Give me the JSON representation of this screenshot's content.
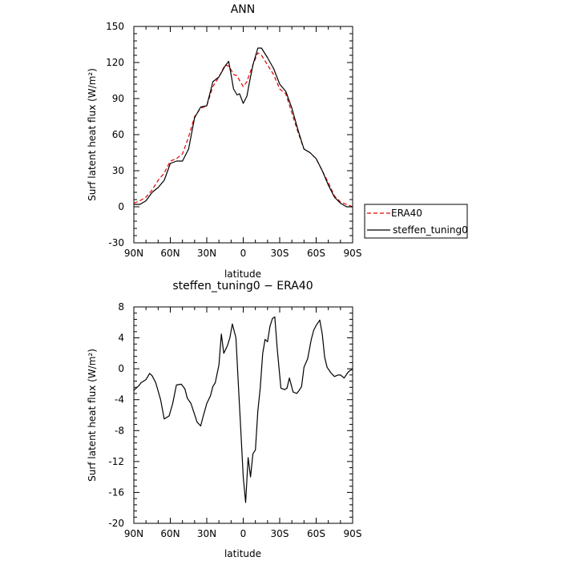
{
  "chart_data": [
    {
      "type": "line",
      "title": "ANN",
      "xlabel": "latitude",
      "ylabel": "Surf latent heat flux (W/m²)",
      "xlim": [
        -90,
        90
      ],
      "ylim": [
        -30,
        150
      ],
      "x_ticks": [
        "90N",
        "60N",
        "30N",
        "0",
        "30S",
        "60S",
        "90S"
      ],
      "y_ticks": [
        "-30",
        "0",
        "30",
        "60",
        "90",
        "120",
        "150"
      ],
      "legend": {
        "placement": "right-outside"
      },
      "series": [
        {
          "name": "ERA40",
          "color": "#e00000",
          "dash": "dashed",
          "x": [
            -90,
            -85,
            -80,
            -75,
            -70,
            -65,
            -60,
            -55,
            -50,
            -45,
            -40,
            -35,
            -30,
            -25,
            -20,
            -15,
            -12,
            -10,
            -8,
            -5,
            -3,
            0,
            3,
            5,
            8,
            12,
            15,
            20,
            25,
            30,
            35,
            40,
            45,
            50,
            55,
            60,
            65,
            70,
            75,
            80,
            85,
            90
          ],
          "y": [
            3,
            5,
            8,
            14,
            22,
            28,
            38,
            40,
            44,
            58,
            75,
            82,
            84,
            100,
            108,
            118,
            117,
            114,
            110,
            109,
            105,
            100,
            104,
            110,
            118,
            128,
            126,
            118,
            110,
            98,
            94,
            78,
            62,
            48,
            45,
            40,
            30,
            20,
            9,
            4,
            2,
            0
          ]
        },
        {
          "name": "steffen_tuning0",
          "color": "#000000",
          "dash": "solid",
          "x": [
            -90,
            -85,
            -80,
            -75,
            -70,
            -65,
            -60,
            -55,
            -50,
            -45,
            -40,
            -35,
            -30,
            -25,
            -20,
            -15,
            -12,
            -10,
            -8,
            -5,
            -3,
            0,
            3,
            5,
            8,
            12,
            15,
            20,
            25,
            30,
            35,
            40,
            45,
            50,
            55,
            60,
            65,
            70,
            75,
            80,
            85,
            90
          ],
          "y": [
            2,
            2,
            5,
            12,
            16,
            22,
            36,
            38,
            38,
            48,
            74,
            83,
            84,
            104,
            108,
            117,
            121,
            110,
            98,
            93,
            94,
            86,
            92,
            103,
            118,
            132,
            132,
            124,
            115,
            102,
            96,
            82,
            64,
            48,
            45,
            40,
            30,
            18,
            8,
            3,
            0,
            0
          ]
        }
      ]
    },
    {
      "type": "line",
      "title": "steffen_tuning0 − ERA40",
      "xlabel": "latitude",
      "ylabel": "Surf latent heat flux (W/m²)",
      "xlim": [
        -90,
        90
      ],
      "ylim": [
        -20,
        8
      ],
      "x_ticks": [
        "90N",
        "60N",
        "30N",
        "0",
        "30S",
        "60S",
        "90S"
      ],
      "y_ticks": [
        "-20",
        "-16",
        "-12",
        "-8",
        "-4",
        "0",
        "4",
        "8"
      ],
      "series": [
        {
          "color": "#000000",
          "dash": "solid",
          "x": [
            -90,
            -86,
            -84,
            -80,
            -77,
            -75,
            -72,
            -68,
            -65,
            -61,
            -58,
            -55,
            -51,
            -48,
            -46,
            -43,
            -38,
            -35,
            -33,
            -30,
            -27,
            -25,
            -23,
            -20,
            -18,
            -16,
            -13,
            -11,
            -9,
            -6,
            -4,
            -2,
            0,
            2,
            4,
            6,
            8,
            10,
            12,
            14,
            16,
            18,
            20,
            22,
            24,
            26,
            28,
            31,
            34,
            36,
            38,
            41,
            44,
            46,
            48,
            50,
            53,
            56,
            58,
            60,
            63,
            65,
            67,
            69,
            72,
            75,
            78,
            80,
            83,
            86,
            88,
            90
          ],
          "y": [
            -2.8,
            -2.2,
            -1.8,
            -1.4,
            -0.6,
            -0.9,
            -1.8,
            -4.0,
            -6.5,
            -6.1,
            -4.5,
            -2.1,
            -2.0,
            -2.6,
            -3.8,
            -4.5,
            -6.9,
            -7.4,
            -6.2,
            -4.5,
            -3.5,
            -2.3,
            -1.8,
            0.5,
            4.5,
            2.0,
            3.0,
            4.0,
            5.8,
            4.0,
            -2.0,
            -8.0,
            -14.0,
            -17.3,
            -11.5,
            -14.0,
            -11.0,
            -10.5,
            -5.5,
            -2.5,
            2.0,
            3.8,
            3.5,
            5.5,
            6.5,
            6.7,
            2.5,
            -2.5,
            -2.7,
            -2.5,
            -1.2,
            -3.0,
            -3.2,
            -2.8,
            -2.3,
            0.2,
            1.3,
            3.8,
            5.0,
            5.6,
            6.3,
            4.5,
            1.5,
            0.2,
            -0.5,
            -1.0,
            -0.8,
            -0.8,
            -1.2,
            -0.5,
            -0.2,
            -0.1
          ]
        }
      ]
    }
  ]
}
